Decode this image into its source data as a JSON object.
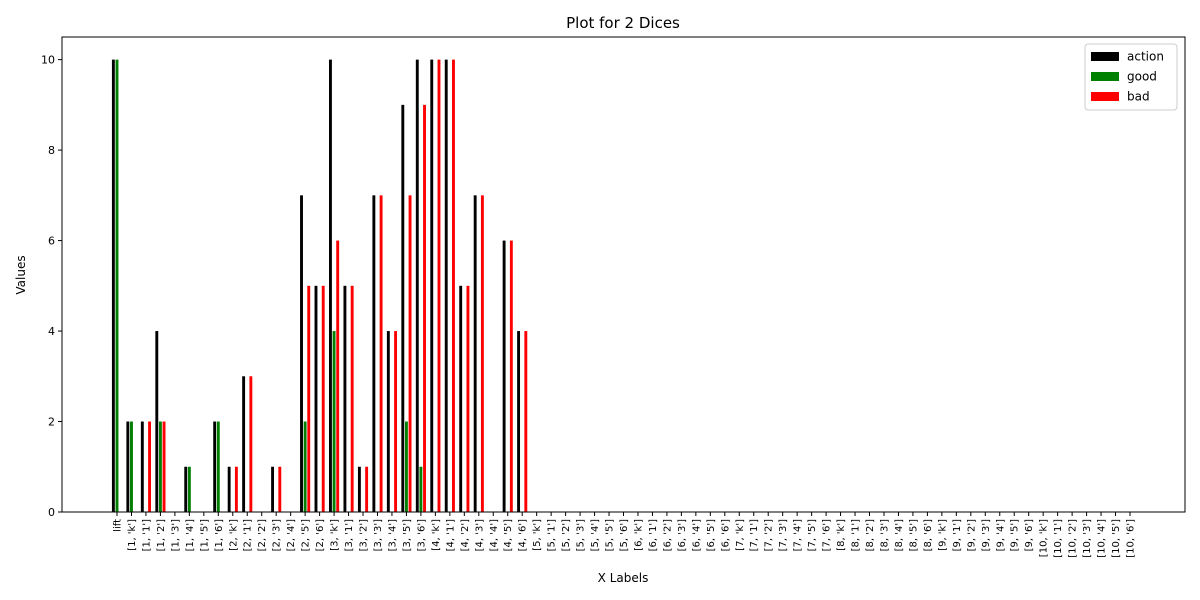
{
  "chart_data": {
    "type": "bar",
    "title": "Plot for 2 Dices",
    "x_label": "X Labels",
    "y_label": "Values",
    "categories": [
      "lift",
      "[1, 'k']",
      "[1, '1']",
      "[1, '2']",
      "[1, '3']",
      "[1, '4']",
      "[1, '5']",
      "[1, '6']",
      "[2, 'k']",
      "[2, '1']",
      "[2, '2']",
      "[2, '3']",
      "[2, '4']",
      "[2, '5']",
      "[2, '6']",
      "[3, 'k']",
      "[3, '1']",
      "[3, '2']",
      "[3, '3']",
      "[3, '4']",
      "[3, '5']",
      "[3, '6']",
      "[4, 'k']",
      "[4, '1']",
      "[4, '2']",
      "[4, '3']",
      "[4, '4']",
      "[4, '5']",
      "[4, '6']",
      "[5, 'k']",
      "[5, '1']",
      "[5, '2']",
      "[5, '3']",
      "[5, '4']",
      "[5, '5']",
      "[5, '6']",
      "[6, 'k']",
      "[6, '1']",
      "[6, '2']",
      "[6, '3']",
      "[6, '4']",
      "[6, '5']",
      "[6, '6']",
      "[7, 'k']",
      "[7, '1']",
      "[7, '2']",
      "[7, '3']",
      "[7, '4']",
      "[7, '5']",
      "[7, '6']",
      "[8, 'k']",
      "[8, '1']",
      "[8, '2']",
      "[8, '3']",
      "[8, '4']",
      "[8, '5']",
      "[8, '6']",
      "[9, 'k']",
      "[9, '1']",
      "[9, '2']",
      "[9, '3']",
      "[9, '4']",
      "[9, '5']",
      "[9, '6']",
      "[10, 'k']",
      "[10, '1']",
      "[10, '2']",
      "[10, '3']",
      "[10, '4']",
      "[10, '5']",
      "[10, '6']"
    ],
    "series": [
      {
        "name": "action",
        "color": "#000000",
        "values": [
          10,
          2,
          2,
          4,
          0,
          1,
          0,
          2,
          1,
          3,
          0,
          1,
          0,
          7,
          5,
          10,
          5,
          1,
          7,
          4,
          9,
          10,
          10,
          10,
          5,
          7,
          0,
          6,
          4,
          0,
          0,
          0,
          0,
          0,
          0,
          0,
          0,
          0,
          0,
          0,
          0,
          0,
          0,
          0,
          0,
          0,
          0,
          0,
          0,
          0,
          0,
          0,
          0,
          0,
          0,
          0,
          0,
          0,
          0,
          0,
          0,
          0,
          0,
          0,
          0,
          0,
          0,
          0,
          0,
          0,
          0
        ]
      },
      {
        "name": "good",
        "color": "#008000",
        "values": [
          10,
          2,
          0,
          2,
          0,
          1,
          0,
          2,
          0,
          0,
          0,
          0,
          0,
          2,
          0,
          4,
          0,
          0,
          0,
          0,
          2,
          1,
          0,
          0,
          0,
          0,
          0,
          0,
          0,
          0,
          0,
          0,
          0,
          0,
          0,
          0,
          0,
          0,
          0,
          0,
          0,
          0,
          0,
          0,
          0,
          0,
          0,
          0,
          0,
          0,
          0,
          0,
          0,
          0,
          0,
          0,
          0,
          0,
          0,
          0,
          0,
          0,
          0,
          0,
          0,
          0,
          0,
          0,
          0,
          0,
          0
        ]
      },
      {
        "name": "bad",
        "color": "#ff0000",
        "values": [
          0,
          0,
          2,
          2,
          0,
          0,
          0,
          0,
          1,
          3,
          0,
          1,
          0,
          5,
          5,
          6,
          5,
          1,
          7,
          4,
          7,
          9,
          10,
          10,
          5,
          7,
          0,
          6,
          4,
          0,
          0,
          0,
          0,
          0,
          0,
          0,
          0,
          0,
          0,
          0,
          0,
          0,
          0,
          0,
          0,
          0,
          0,
          0,
          0,
          0,
          0,
          0,
          0,
          0,
          0,
          0,
          0,
          0,
          0,
          0,
          0,
          0,
          0,
          0,
          0,
          0,
          0,
          0,
          0,
          0,
          0
        ]
      }
    ],
    "ylim": [
      0,
      10.5
    ],
    "yticks": [
      0,
      2,
      4,
      6,
      8,
      10
    ],
    "legend": "upper right"
  }
}
